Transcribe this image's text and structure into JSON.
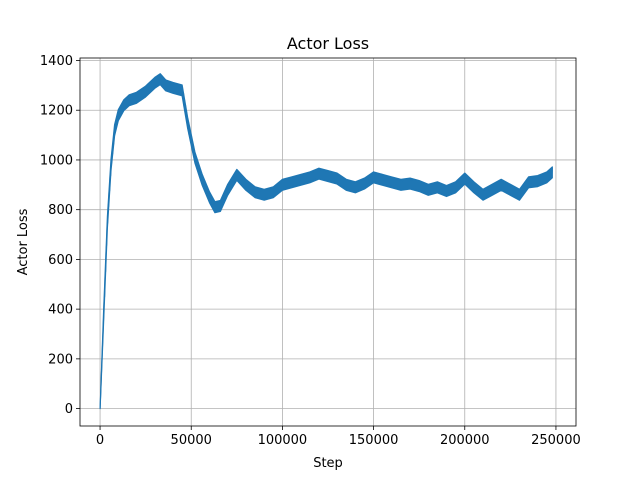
{
  "chart_data": {
    "type": "line",
    "title": "Actor Loss",
    "xlabel": "Step",
    "ylabel": "Actor Loss",
    "xlim": [
      -11000,
      261000
    ],
    "ylim": [
      -70,
      1410
    ],
    "xticks": [
      0,
      50000,
      100000,
      150000,
      200000,
      250000
    ],
    "yticks": [
      0,
      200,
      400,
      600,
      800,
      1000,
      1200,
      1400
    ],
    "grid": true,
    "legend": "none",
    "line_color": "#1f77b4",
    "band_halfwidth": 22,
    "series": [
      {
        "x": [
          0,
          2000,
          4000,
          6000,
          8000,
          10000,
          13000,
          16000,
          20000,
          25000,
          30000,
          33000,
          36000,
          40000,
          45000,
          48000,
          52000,
          56000,
          60000,
          63000,
          66000,
          70000,
          75000,
          80000,
          85000,
          90000,
          95000,
          100000,
          105000,
          110000,
          115000,
          120000,
          125000,
          130000,
          135000,
          140000,
          145000,
          150000,
          155000,
          160000,
          165000,
          170000,
          175000,
          180000,
          185000,
          190000,
          195000,
          200000,
          205000,
          210000,
          215000,
          220000,
          225000,
          230000,
          235000,
          240000,
          245000,
          248000
        ],
        "values": [
          0,
          380,
          750,
          980,
          1120,
          1180,
          1220,
          1240,
          1250,
          1275,
          1310,
          1325,
          1300,
          1290,
          1280,
          1150,
          1010,
          920,
          850,
          810,
          815,
          880,
          940,
          900,
          870,
          860,
          870,
          900,
          910,
          920,
          930,
          945,
          935,
          925,
          900,
          890,
          905,
          930,
          920,
          910,
          900,
          905,
          895,
          880,
          890,
          875,
          890,
          925,
          890,
          860,
          880,
          900,
          880,
          860,
          910,
          915,
          930,
          950
        ]
      }
    ]
  }
}
